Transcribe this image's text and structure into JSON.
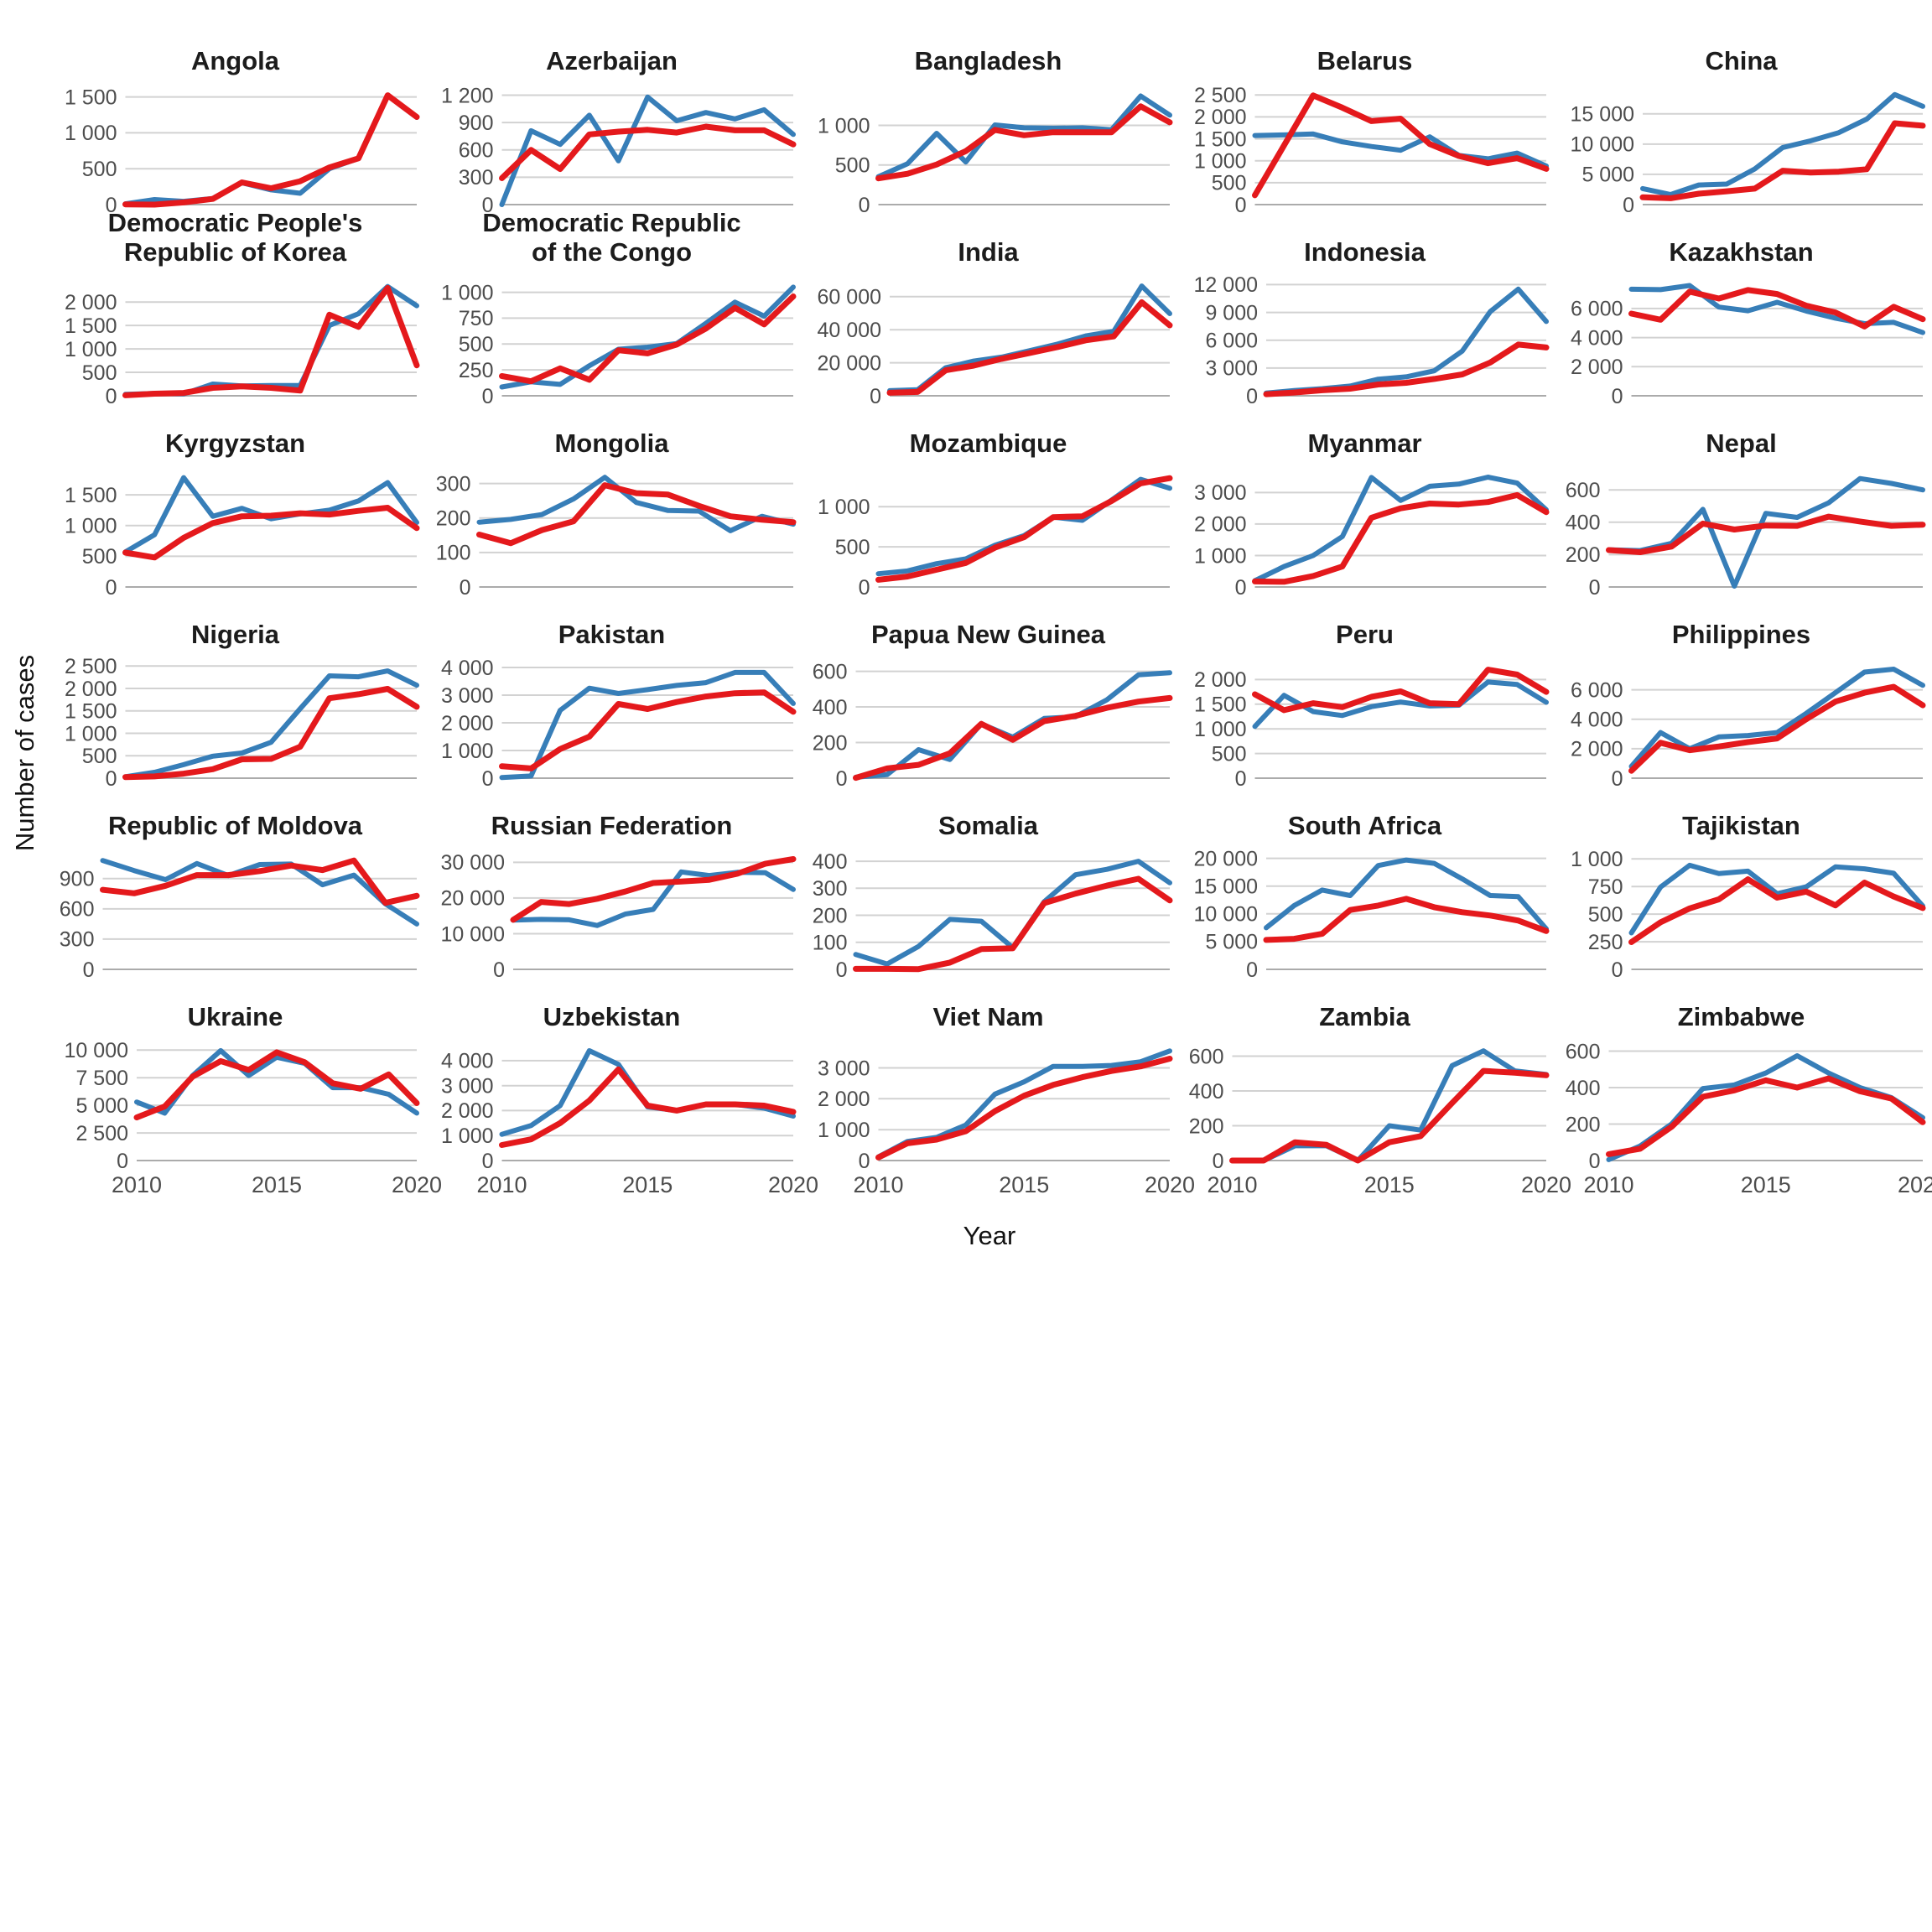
{
  "chart_data": {
    "type": "line",
    "title": "",
    "xlabel": "Year",
    "ylabel": "Number of cases",
    "x": [
      2010,
      2011,
      2012,
      2013,
      2014,
      2015,
      2016,
      2017,
      2018,
      2019,
      2020
    ],
    "x_ticks_shown": [
      2010,
      2015,
      2020
    ],
    "grid": "horizontal-only",
    "legend": "none",
    "series_colors": {
      "blue": "#377eb8",
      "red": "#e4191c"
    },
    "panels": [
      {
        "title": "Angola",
        "yticks": [
          0,
          500,
          1000,
          1500
        ],
        "ymax": 1600,
        "blue": [
          10,
          70,
          45,
          85,
          305,
          205,
          158,
          500,
          645,
          1520,
          1215
        ],
        "red": [
          3,
          0,
          30,
          80,
          310,
          228,
          326,
          517,
          645,
          1523,
          1220
        ]
      },
      {
        "title": "Azerbaijan",
        "yticks": [
          0,
          300,
          600,
          900,
          1200
        ],
        "ymax": 1260,
        "blue": [
          0,
          810,
          660,
          980,
          480,
          1180,
          920,
          1010,
          940,
          1040,
          770
        ],
        "red": [
          290,
          600,
          390,
          770,
          800,
          820,
          790,
          855,
          815,
          815,
          660
        ]
      },
      {
        "title": "Bangladesh",
        "yticks": [
          0,
          500,
          1000
        ],
        "ymax": 1450,
        "blue": [
          352,
          517,
          900,
          538,
          1006,
          970,
          964,
          970,
          945,
          1371,
          1129
        ],
        "red": [
          331,
          390,
          506,
          675,
          943,
          875,
          913,
          913,
          913,
          1240,
          1038
        ]
      },
      {
        "title": "Belarus",
        "yticks": [
          0,
          500,
          1000,
          1500,
          2000,
          2500
        ],
        "ymax": 2620,
        "blue": [
          1576,
          1590,
          1610,
          1430,
          1325,
          1240,
          1545,
          1122,
          1045,
          1175,
          880
        ],
        "red": [
          213,
          1350,
          2490,
          2210,
          1905,
          1960,
          1380,
          1110,
          945,
          1060,
          815
        ]
      },
      {
        "title": "China",
        "yticks": [
          0,
          5000,
          10000,
          15000
        ],
        "ymax": 19000,
        "blue": [
          2650,
          1670,
          3250,
          3400,
          5900,
          9440,
          10550,
          11900,
          14150,
          18200,
          16250
        ],
        "red": [
          1200,
          1050,
          1800,
          2200,
          2650,
          5600,
          5300,
          5450,
          5850,
          13450,
          13050
        ]
      },
      {
        "title": "Democratic People's\nRepublic of Korea",
        "yticks": [
          0,
          500,
          1000,
          1500,
          2000
        ],
        "ymax": 2450,
        "blue": [
          30,
          50,
          40,
          250,
          210,
          220,
          220,
          1500,
          1750,
          2330,
          1920
        ],
        "red": [
          10,
          45,
          60,
          170,
          200,
          170,
          110,
          1730,
          1470,
          2300,
          650
        ]
      },
      {
        "title": "Democratic Republic\nof the Congo",
        "yticks": [
          0,
          250,
          500,
          750,
          1000
        ],
        "ymax": 1110,
        "blue": [
          85,
          135,
          110,
          290,
          450,
          470,
          505,
          700,
          905,
          770,
          1050
        ],
        "red": [
          190,
          140,
          265,
          155,
          440,
          410,
          495,
          650,
          850,
          690,
          960
        ]
      },
      {
        "title": "India",
        "yticks": [
          0,
          20000,
          40000,
          60000
        ],
        "ymax": 69500,
        "blue": [
          3100,
          3700,
          17000,
          21000,
          23400,
          27300,
          31300,
          36200,
          39000,
          66400,
          49700
        ],
        "red": [
          1850,
          2350,
          15400,
          18250,
          22350,
          25900,
          29500,
          33600,
          35900,
          56600,
          42600
        ]
      },
      {
        "title": "Indonesia",
        "yticks": [
          0,
          3000,
          6000,
          9000,
          12000
        ],
        "ymax": 12400,
        "blue": [
          300,
          560,
          770,
          1050,
          1790,
          2050,
          2700,
          4820,
          9090,
          11510,
          8020
        ],
        "red": [
          175,
          350,
          595,
          770,
          1225,
          1400,
          1820,
          2310,
          3595,
          5530,
          5210
        ]
      },
      {
        "title": "Kazakhstan",
        "yticks": [
          0,
          2000,
          4000,
          6000
        ],
        "ymax": 7900,
        "blue": [
          7330,
          7300,
          7580,
          6100,
          5850,
          6430,
          5830,
          5340,
          4960,
          5050,
          4350
        ],
        "red": [
          5650,
          5230,
          7160,
          6690,
          7270,
          7000,
          6200,
          5730,
          4770,
          6120,
          5270
        ]
      },
      {
        "title": "Kyrgyzstan",
        "yticks": [
          0,
          500,
          1000,
          1500
        ],
        "ymax": 1870,
        "blue": [
          570,
          850,
          1780,
          1150,
          1280,
          1110,
          1190,
          1250,
          1400,
          1700,
          1050
        ],
        "red": [
          560,
          480,
          800,
          1040,
          1150,
          1160,
          1200,
          1180,
          1240,
          1290,
          960
        ]
      },
      {
        "title": "Mongolia",
        "yticks": [
          0,
          100,
          200,
          300
        ],
        "ymax": 333,
        "blue": [
          188,
          196,
          210,
          255,
          318,
          245,
          222,
          220,
          163,
          205,
          182
        ],
        "red": [
          152,
          127,
          165,
          190,
          295,
          272,
          268,
          235,
          205,
          195,
          188
        ]
      },
      {
        "title": "Mozambique",
        "yticks": [
          0,
          500,
          1000
        ],
        "ymax": 1430,
        "blue": [
          165,
          200,
          290,
          350,
          520,
          640,
          870,
          830,
          1080,
          1340,
          1230
        ],
        "red": [
          90,
          130,
          215,
          300,
          490,
          620,
          870,
          880,
          1070,
          1290,
          1355
        ]
      },
      {
        "title": "Myanmar",
        "yticks": [
          0,
          1000,
          2000,
          3000
        ],
        "ymax": 3650,
        "blue": [
          200,
          650,
          1000,
          1600,
          3480,
          2750,
          3200,
          3270,
          3490,
          3300,
          2450
        ],
        "red": [
          175,
          165,
          350,
          650,
          2200,
          2500,
          2650,
          2620,
          2700,
          2920,
          2380
        ]
      },
      {
        "title": "Nepal",
        "yticks": [
          0,
          200,
          400,
          600
        ],
        "ymax": 710,
        "blue": [
          230,
          225,
          270,
          480,
          5,
          455,
          430,
          520,
          670,
          640,
          600
        ],
        "red": [
          228,
          215,
          250,
          392,
          355,
          380,
          378,
          435,
          405,
          378,
          385
        ]
      },
      {
        "title": "Nigeria",
        "yticks": [
          0,
          500,
          1000,
          1500,
          2000,
          2500
        ],
        "ymax": 2560,
        "blue": [
          30,
          130,
          300,
          490,
          560,
          800,
          1550,
          2280,
          2260,
          2390,
          2070
        ],
        "red": [
          25,
          40,
          100,
          200,
          420,
          430,
          700,
          1780,
          1870,
          1990,
          1590
        ]
      },
      {
        "title": "Pakistan",
        "yticks": [
          0,
          1000,
          2000,
          3000,
          4000
        ],
        "ymax": 4150,
        "blue": [
          20,
          80,
          2450,
          3250,
          3060,
          3200,
          3350,
          3450,
          3820,
          3820,
          2700
        ],
        "red": [
          430,
          350,
          1050,
          1500,
          2680,
          2500,
          2750,
          2950,
          3070,
          3100,
          2400
        ]
      },
      {
        "title": "Papua New Guinea",
        "yticks": [
          0,
          200,
          400,
          600
        ],
        "ymax": 645,
        "blue": [
          5,
          20,
          160,
          105,
          305,
          230,
          335,
          345,
          440,
          580,
          592
        ],
        "red": [
          2,
          55,
          75,
          140,
          305,
          215,
          320,
          350,
          395,
          430,
          450
        ]
      },
      {
        "title": "Peru",
        "yticks": [
          0,
          500,
          1000,
          1500,
          2000
        ],
        "ymax": 2330,
        "blue": [
          1050,
          1680,
          1350,
          1270,
          1450,
          1545,
          1465,
          1480,
          1950,
          1900,
          1540
        ],
        "red": [
          1700,
          1380,
          1520,
          1440,
          1650,
          1760,
          1520,
          1500,
          2200,
          2100,
          1750
        ]
      },
      {
        "title": "Philippines",
        "yticks": [
          0,
          2000,
          4000,
          6000
        ],
        "ymax": 7800,
        "blue": [
          800,
          3100,
          2000,
          2800,
          2900,
          3100,
          4400,
          5800,
          7200,
          7400,
          6300
        ],
        "red": [
          500,
          2400,
          1900,
          2150,
          2450,
          2700,
          4000,
          5200,
          5800,
          6200,
          4950
        ]
      },
      {
        "title": "Republic of Moldova",
        "yticks": [
          0,
          300,
          600,
          900
        ],
        "ymax": 1140,
        "blue": [
          1080,
          980,
          890,
          1050,
          930,
          1040,
          1045,
          840,
          935,
          650,
          450
        ],
        "red": [
          790,
          755,
          830,
          935,
          935,
          975,
          1030,
          985,
          1080,
          660,
          730
        ]
      },
      {
        "title": "Russian Federation",
        "yticks": [
          0,
          10000,
          20000,
          30000
        ],
        "ymax": 32200,
        "blue": [
          13800,
          14000,
          13900,
          12300,
          15500,
          16800,
          27300,
          26300,
          27200,
          27100,
          22400
        ],
        "red": [
          13900,
          18900,
          18300,
          19800,
          21800,
          24200,
          24600,
          25100,
          26800,
          29600,
          30900
        ]
      },
      {
        "title": "Somalia",
        "yticks": [
          0,
          100,
          200,
          300,
          400
        ],
        "ymax": 425,
        "blue": [
          55,
          20,
          85,
          185,
          178,
          80,
          250,
          350,
          370,
          400,
          320
        ],
        "red": [
          2,
          2,
          1,
          25,
          75,
          78,
          245,
          280,
          310,
          335,
          255
        ]
      },
      {
        "title": "South Africa",
        "yticks": [
          0,
          5000,
          10000,
          15000,
          20000
        ],
        "ymax": 20700,
        "blue": [
          7500,
          11500,
          14300,
          13300,
          18700,
          19700,
          19100,
          16300,
          13300,
          13100,
          7300
        ],
        "red": [
          5300,
          5500,
          6400,
          10700,
          11500,
          12700,
          11200,
          10300,
          9700,
          8800,
          6900
        ]
      },
      {
        "title": "Tajikistan",
        "yticks": [
          0,
          250,
          500,
          750,
          1000
        ],
        "ymax": 1040,
        "blue": [
          330,
          745,
          942,
          867,
          889,
          685,
          747,
          928,
          910,
          870,
          574
        ],
        "red": [
          247,
          426,
          552,
          634,
          815,
          649,
          704,
          579,
          786,
          660,
          555
        ]
      },
      {
        "title": "Ukraine",
        "yticks": [
          0,
          2500,
          5000,
          7500,
          10000
        ],
        "ymax": 10400,
        "blue": [
          5300,
          4300,
          7700,
          9950,
          7700,
          9350,
          8800,
          6600,
          6600,
          6000,
          4300
        ],
        "red": [
          3900,
          4900,
          7600,
          9000,
          8200,
          9800,
          8900,
          7000,
          6500,
          7800,
          5200
        ]
      },
      {
        "title": "Uzbekistan",
        "yticks": [
          0,
          1000,
          2000,
          3000,
          4000
        ],
        "ymax": 4600,
        "blue": [
          1050,
          1400,
          2200,
          4400,
          3850,
          2150,
          2000,
          2250,
          2250,
          2100,
          1780
        ],
        "red": [
          620,
          850,
          1500,
          2400,
          3650,
          2200,
          2000,
          2250,
          2250,
          2200,
          1950
        ]
      },
      {
        "title": "Viet Nam",
        "yticks": [
          0,
          1000,
          2000,
          3000
        ],
        "ymax": 3720,
        "blue": [
          120,
          620,
          750,
          1150,
          2150,
          2550,
          3050,
          3050,
          3080,
          3200,
          3550
        ],
        "red": [
          100,
          560,
          680,
          950,
          1600,
          2100,
          2450,
          2700,
          2900,
          3050,
          3300
        ]
      },
      {
        "title": "Zambia",
        "yticks": [
          0,
          200,
          400,
          600
        ],
        "ymax": 660,
        "blue": [
          0,
          0,
          85,
          85,
          0,
          200,
          175,
          545,
          630,
          515,
          495
        ],
        "red": [
          0,
          0,
          105,
          90,
          0,
          105,
          140,
          330,
          515,
          505,
          490
        ]
      },
      {
        "title": "Zimbabwe",
        "yticks": [
          0,
          200,
          400,
          600
        ],
        "ymax": 630,
        "blue": [
          5,
          80,
          200,
          395,
          415,
          480,
          575,
          480,
          400,
          345,
          235
        ],
        "red": [
          35,
          65,
          185,
          350,
          385,
          440,
          400,
          450,
          380,
          340,
          210
        ]
      }
    ]
  }
}
